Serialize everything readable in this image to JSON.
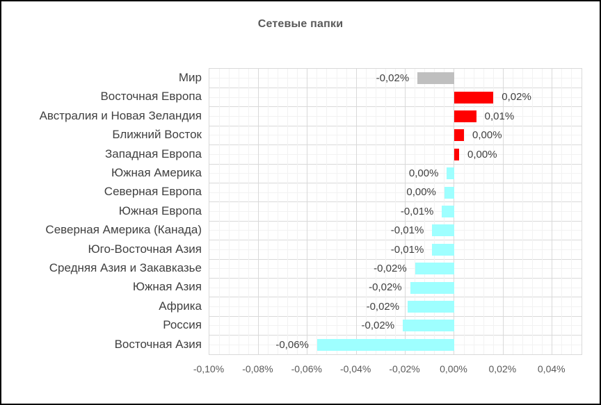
{
  "chart_data": {
    "type": "bar",
    "orientation": "horizontal",
    "title": "Сетевые папки",
    "categories": [
      "Мир",
      "Восточная Европа",
      "Австралия и Новая Зеландия",
      "Ближний Восток",
      "Западная Европа",
      "Южная Америка",
      "Северная Европа",
      "Южная Европа",
      "Северная Америка (Канада)",
      "Юго-Восточная Азия",
      "Средняя Азия и Закавказье",
      "Южная Азия",
      "Африка",
      "Россия",
      "Восточная Азия"
    ],
    "values": [
      -0.015,
      0.016,
      0.009,
      0.004,
      0.002,
      -0.003,
      -0.004,
      -0.005,
      -0.009,
      -0.009,
      -0.016,
      -0.018,
      -0.019,
      -0.021,
      -0.056
    ],
    "value_labels": [
      "-0,02%",
      "0,02%",
      "0,01%",
      "0,00%",
      "0,00%",
      "0,00%",
      "0,00%",
      "-0,01%",
      "-0,01%",
      "-0,01%",
      "-0,02%",
      "-0,02%",
      "-0,02%",
      "-0,02%",
      "-0,06%"
    ],
    "bar_colors": [
      "#BFBFBF",
      "#FF0000",
      "#FF0000",
      "#FF0000",
      "#FF0000",
      "#9EFFFF",
      "#9EFFFF",
      "#9EFFFF",
      "#9EFFFF",
      "#9EFFFF",
      "#9EFFFF",
      "#9EFFFF",
      "#9EFFFF",
      "#9EFFFF",
      "#9EFFFF"
    ],
    "x_tick_labels": [
      "-0,10%",
      "-0,08%",
      "-0,06%",
      "-0,04%",
      "-0,02%",
      "0,00%",
      "0,02%",
      "0,04%"
    ],
    "x_tick_values": [
      -0.1,
      -0.08,
      -0.06,
      -0.04,
      -0.02,
      0,
      0.02,
      0.04
    ],
    "xlim": [
      -0.1,
      0.052
    ],
    "unit": "percent",
    "grid": {
      "major_step": 0.02,
      "minor_step": 0.004,
      "major_color": "#D9D9D9",
      "minor_color": "#F2F2F2"
    },
    "legend": "none"
  },
  "styles": {
    "background": "#FFFFFF",
    "frame_border_color": "#000000",
    "title_color": "#595959",
    "category_label_color": "#404040",
    "value_label_color": "#404040",
    "tick_label_color": "#595959",
    "world_bar_color": "#BFBFBF",
    "positive_bar_color": "#FF0000",
    "negative_bar_color": "#9EFFFF"
  }
}
